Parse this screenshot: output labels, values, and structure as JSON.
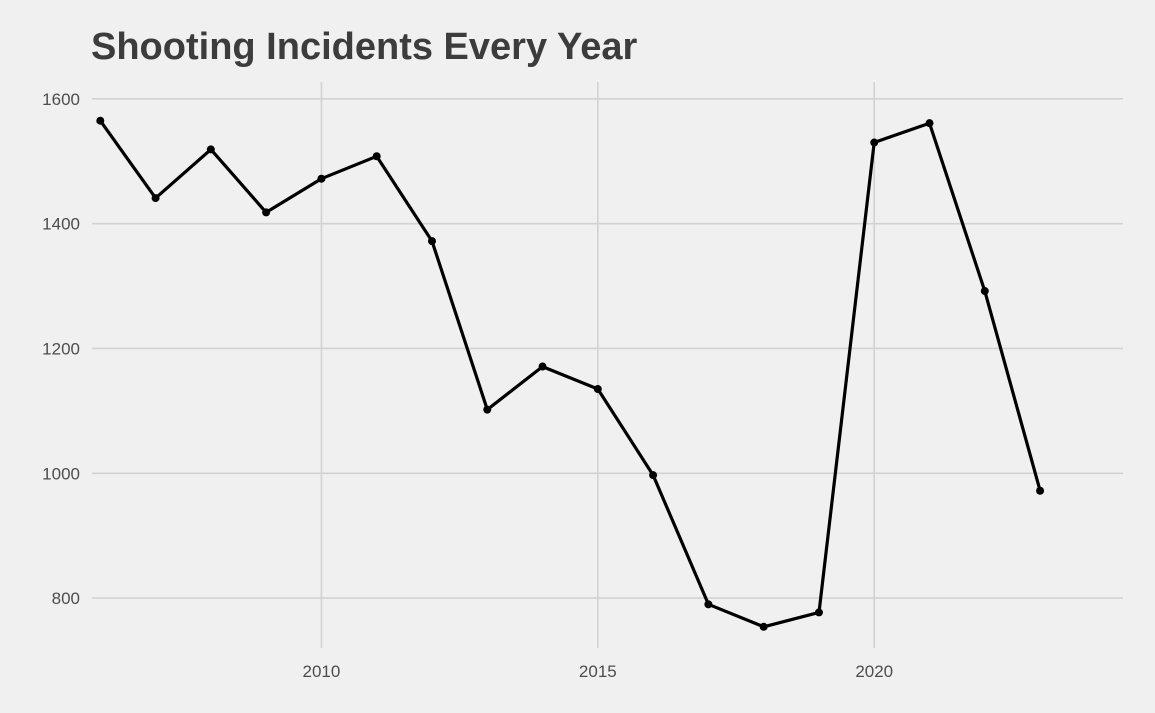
{
  "chart_data": {
    "type": "line",
    "title": "Shooting Incidents Every Year",
    "xlabel": "",
    "ylabel": "",
    "x": [
      2006,
      2007,
      2008,
      2009,
      2010,
      2011,
      2012,
      2013,
      2014,
      2015,
      2016,
      2017,
      2018,
      2019,
      2020,
      2021,
      2022,
      2023
    ],
    "series": [
      {
        "name": "",
        "values": [
          1565,
          1441,
          1519,
          1418,
          1472,
          1508,
          1372,
          1102,
          1171,
          1135,
          997,
          790,
          754,
          777,
          1530,
          1561,
          1292,
          972
        ]
      }
    ],
    "xticks": [
      "2010",
      "2015",
      "2020"
    ],
    "yticks": [
      "800",
      "1000",
      "1200",
      "1400",
      "1600"
    ],
    "xlim": [
      2005.85,
      2024.5
    ],
    "ylim": [
      720,
      1627
    ],
    "grid": true,
    "legend": "none",
    "colors": {
      "background": "#f0f0f0",
      "grid": "#d2d2d2",
      "line": "#000000",
      "title": "#3c3c3c",
      "tick_label": "#4d4d4d"
    }
  }
}
